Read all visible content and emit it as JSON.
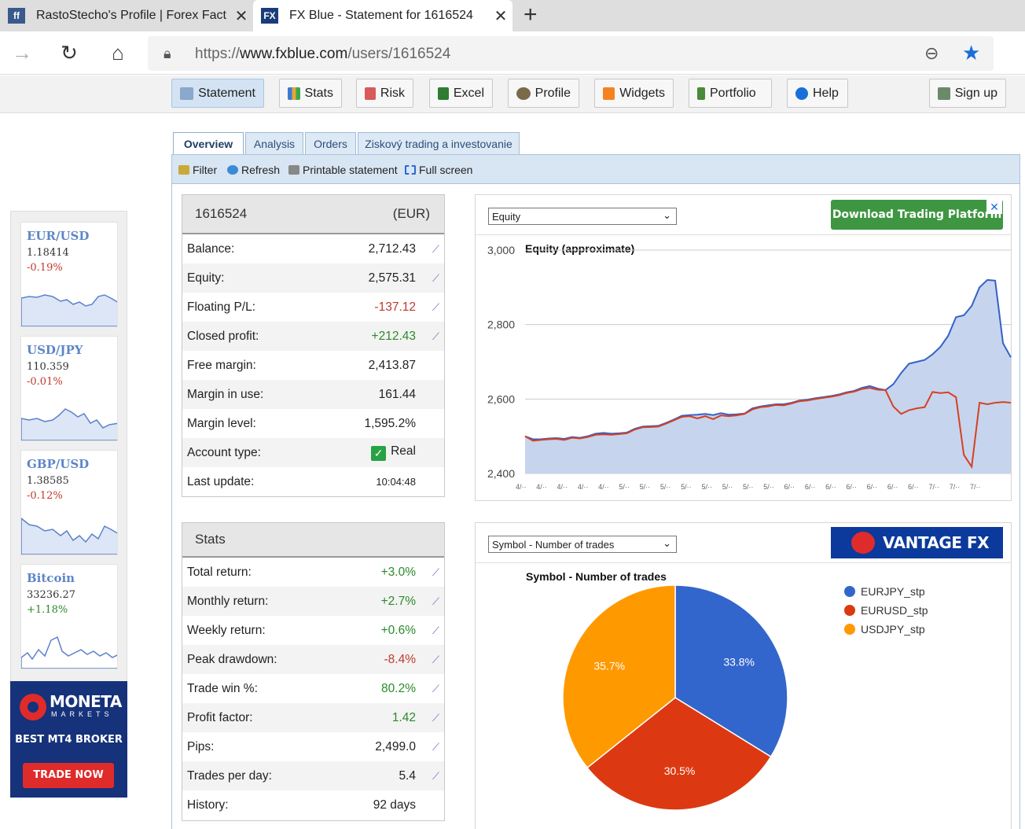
{
  "browser": {
    "tabs": [
      {
        "title": "RastoStecho's Profile | Forex Fact",
        "close": "✕"
      },
      {
        "title": "FX Blue - Statement for 1616524",
        "close": "✕"
      }
    ],
    "url_prefix": "https://",
    "url_host": "www.fxblue.com",
    "url_path": "/users/1616524"
  },
  "toolbar": {
    "buttons": [
      "Statement",
      "Stats",
      "Risk",
      "Excel",
      "Profile",
      "Widgets",
      "Portfolio",
      "Help",
      "Sign up"
    ]
  },
  "subtabs": [
    "Overview",
    "Analysis",
    "Orders",
    "Ziskový trading a investovanie"
  ],
  "actions": [
    "Filter",
    "Refresh",
    "Printable statement",
    "Full screen"
  ],
  "sidebar": {
    "pairs": [
      {
        "symbol": "EUR/USD",
        "price": "1.18414",
        "change": "-0.19%",
        "trend": "neg"
      },
      {
        "symbol": "USD/JPY",
        "price": "110.359",
        "change": "-0.01%",
        "trend": "neg"
      },
      {
        "symbol": "GBP/USD",
        "price": "1.38585",
        "change": "-0.12%",
        "trend": "neg"
      },
      {
        "symbol": "Bitcoin",
        "price": "33236.27",
        "change": "+1.18%",
        "trend": "pos"
      }
    ],
    "ad": {
      "brand": "MONETA",
      "sub": "MARKETS",
      "tagline": "BEST MT4 BROKER",
      "cta": "TRADE NOW"
    }
  },
  "account": {
    "id": "1616524",
    "currency": "(EUR)",
    "rows": [
      {
        "label": "Balance:",
        "value": "2,712.43",
        "cls": "",
        "spark": true
      },
      {
        "label": "Equity:",
        "value": "2,575.31",
        "cls": "",
        "spark": true
      },
      {
        "label": "Floating P/L:",
        "value": "-137.12",
        "cls": "neg",
        "spark": true
      },
      {
        "label": "Closed profit:",
        "value": "+212.43",
        "cls": "pos",
        "spark": true
      },
      {
        "label": "Free margin:",
        "value": "2,413.87",
        "cls": "",
        "spark": false
      },
      {
        "label": "Margin in use:",
        "value": "161.44",
        "cls": "",
        "spark": false
      },
      {
        "label": "Margin level:",
        "value": "1,595.2%",
        "cls": "",
        "spark": false
      },
      {
        "label": "Account type:",
        "value": "Real",
        "cls": "real",
        "spark": false
      },
      {
        "label": "Last update:",
        "value": "10:04:48",
        "cls": "small",
        "spark": false
      }
    ]
  },
  "stats": {
    "title": "Stats",
    "rows": [
      {
        "label": "Total return:",
        "value": "+3.0%",
        "cls": "pos",
        "spark": true
      },
      {
        "label": "Monthly return:",
        "value": "+2.7%",
        "cls": "pos",
        "spark": true
      },
      {
        "label": "Weekly return:",
        "value": "+0.6%",
        "cls": "pos",
        "spark": true
      },
      {
        "label": "Peak drawdown:",
        "value": "-8.4%",
        "cls": "neg",
        "spark": true
      },
      {
        "label": "Trade win %:",
        "value": "80.2%",
        "cls": "pos",
        "spark": true
      },
      {
        "label": "Profit factor:",
        "value": "1.42",
        "cls": "pos",
        "spark": true
      },
      {
        "label": "Pips:",
        "value": "2,499.0",
        "cls": "",
        "spark": true
      },
      {
        "label": "Trades per day:",
        "value": "5.4",
        "cls": "",
        "spark": true
      },
      {
        "label": "History:",
        "value": "92 days",
        "cls": "",
        "spark": false
      }
    ]
  },
  "equity_panel": {
    "select": "Equity",
    "ad": "Download Trading Platform",
    "ad_close": "✕"
  },
  "pie_panel": {
    "select": "Symbol - Number of trades",
    "ad": "VANTAGE FX"
  },
  "chart_data": [
    {
      "type": "area",
      "title": "Equity (approximate)",
      "ylim": [
        2400,
        3000
      ],
      "yticks": [
        "2,400",
        "2,600",
        "2,800",
        "3,000"
      ],
      "grid": true,
      "xtick_labels": [
        "4/··",
        "4/··",
        "4/··",
        "4/··",
        "4/··",
        "5/··",
        "5/··",
        "5/··",
        "5/··",
        "5/··",
        "5/··",
        "5/··",
        "5/··",
        "6/··",
        "6/··",
        "6/··",
        "6/··",
        "6/··",
        "6/··",
        "6/··",
        "7/··",
        "7/··",
        "7/··"
      ],
      "series": [
        {
          "color": "#3361c9",
          "fill": "#c6d4ee",
          "values": [
            2500,
            2492,
            2492,
            2494,
            2495,
            2493,
            2498,
            2496,
            2500,
            2507,
            2509,
            2507,
            2508,
            2510,
            2520,
            2526,
            2527,
            2528,
            2536,
            2545,
            2555,
            2557,
            2558,
            2560,
            2557,
            2562,
            2558,
            2559,
            2561,
            2575,
            2580,
            2583,
            2586,
            2586,
            2590,
            2596,
            2598,
            2602,
            2605,
            2608,
            2612,
            2618,
            2622,
            2630,
            2635,
            2628,
            2624,
            2640,
            2670,
            2695,
            2700,
            2705,
            2720,
            2740,
            2770,
            2820,
            2825,
            2850,
            2900,
            2920,
            2918,
            2750,
            2712
          ]
        },
        {
          "color": "#d64020",
          "values": [
            2500,
            2488,
            2490,
            2492,
            2493,
            2490,
            2496,
            2494,
            2498,
            2504,
            2505,
            2504,
            2506,
            2508,
            2518,
            2524,
            2525,
            2526,
            2534,
            2543,
            2552,
            2554,
            2548,
            2554,
            2546,
            2556,
            2554,
            2556,
            2560,
            2572,
            2578,
            2580,
            2584,
            2583,
            2588,
            2594,
            2596,
            2600,
            2603,
            2606,
            2610,
            2616,
            2620,
            2627,
            2630,
            2625,
            2624,
            2580,
            2560,
            2570,
            2575,
            2578,
            2619,
            2616,
            2618,
            2605,
            2450,
            2418,
            2590,
            2586,
            2590,
            2592,
            2590
          ]
        }
      ]
    },
    {
      "type": "pie",
      "title": "Symbol - Number of trades",
      "legend_position": "right",
      "slices": [
        {
          "label": "EURJPY_stp",
          "value": 33.8,
          "text": "33.8%",
          "color": "#3366cc"
        },
        {
          "label": "EURUSD_stp",
          "value": 30.5,
          "text": "30.5%",
          "color": "#dc3912"
        },
        {
          "label": "USDJPY_stp",
          "value": 35.7,
          "text": "35.7%",
          "color": "#ff9900"
        }
      ]
    }
  ]
}
